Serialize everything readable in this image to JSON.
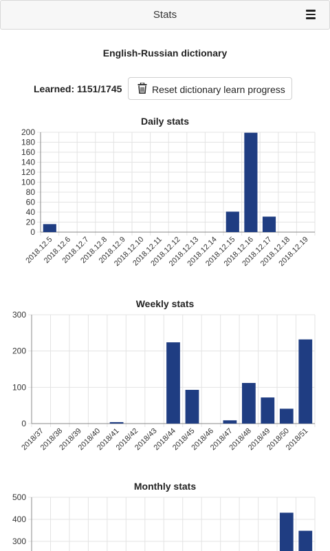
{
  "header": {
    "title": "Stats",
    "menu_icon": "hamburger-menu-icon"
  },
  "dictionary": {
    "title": "English-Russian dictionary",
    "learned_label": "Learned: 1151/1745",
    "reset_button_label": "Reset dictionary learn progress",
    "reset_button_icon": "trash-icon"
  },
  "chart_data": [
    {
      "type": "bar",
      "title": "Daily stats",
      "categories": [
        "2018.12.5",
        "2018.12.6",
        "2018.12.7",
        "2018.12.8",
        "2018.12.9",
        "2018.12.10",
        "2018.12.11",
        "2018.12.12",
        "2018.12.13",
        "2018.12.14",
        "2018.12.15",
        "2018.12.16",
        "2018.12.17",
        "2018.12.18",
        "2018.12.19"
      ],
      "values": [
        16,
        0,
        0,
        0,
        0,
        0,
        0,
        0,
        0,
        0,
        41,
        199,
        31,
        0,
        0
      ],
      "ylim": [
        0,
        200
      ],
      "yticks": [
        0,
        20,
        40,
        60,
        80,
        100,
        120,
        140,
        160,
        180,
        200
      ],
      "grid": true,
      "color": "#1f3d82"
    },
    {
      "type": "bar",
      "title": "Weekly stats",
      "categories": [
        "2018/37",
        "2018/38",
        "2018/39",
        "2018/40",
        "2018/41",
        "2018/42",
        "2018/43",
        "2018/44",
        "2018/45",
        "2018/46",
        "2018/47",
        "2018/48",
        "2018/49",
        "2018/50",
        "2018/51"
      ],
      "values": [
        0,
        0,
        0,
        0,
        4,
        0,
        0,
        224,
        93,
        0,
        9,
        112,
        72,
        41,
        232
      ],
      "ylim": [
        0,
        300
      ],
      "yticks": [
        0,
        100,
        200,
        300
      ],
      "grid": true,
      "color": "#1f3d82"
    },
    {
      "type": "bar",
      "title": "Monthly stats",
      "visible_partial": true,
      "values_visible": [
        430,
        348
      ],
      "ylim_visible": [
        300,
        500
      ],
      "yticks": [
        300,
        400,
        500
      ],
      "grid": true,
      "color": "#1f3d82"
    }
  ]
}
